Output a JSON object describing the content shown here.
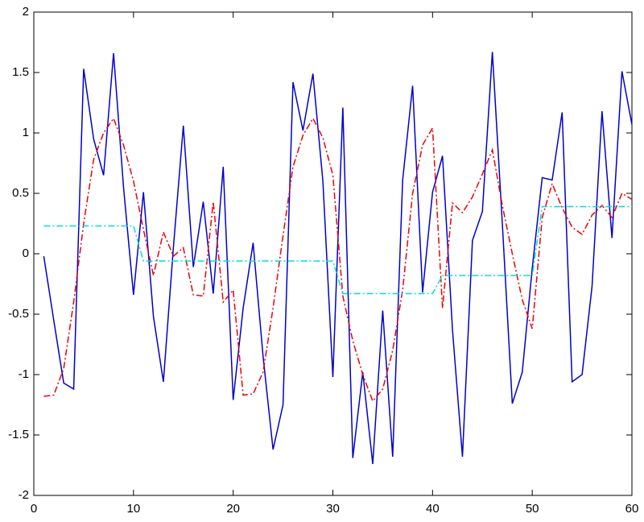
{
  "chart_data": {
    "type": "line",
    "x": [
      1,
      2,
      3,
      4,
      5,
      6,
      7,
      8,
      9,
      10,
      11,
      12,
      13,
      14,
      15,
      16,
      17,
      18,
      19,
      20,
      21,
      22,
      23,
      24,
      25,
      26,
      27,
      28,
      29,
      30,
      31,
      32,
      33,
      34,
      35,
      36,
      37,
      38,
      39,
      40,
      41,
      42,
      43,
      44,
      45,
      46,
      47,
      48,
      49,
      50,
      51,
      52,
      53,
      54,
      55,
      56,
      57,
      58,
      59,
      60
    ],
    "series": [
      {
        "color": "#0000cc",
        "style": "solid",
        "values": [
          -0.02,
          -0.55,
          -1.07,
          -1.12,
          1.53,
          0.95,
          0.65,
          1.66,
          0.55,
          -0.34,
          0.51,
          -0.52,
          -1.06,
          0.05,
          1.06,
          -0.11,
          0.43,
          -0.33,
          0.72,
          -1.21,
          -0.45,
          0.09,
          -0.85,
          -1.62,
          -1.25,
          1.42,
          1.02,
          1.49,
          0.6,
          -1.02,
          1.21,
          -1.69,
          -0.98,
          -1.74,
          -0.47,
          -1.68,
          0.61,
          1.39,
          -0.32,
          0.51,
          0.81,
          -0.63,
          -1.68,
          0.11,
          0.35,
          1.67,
          0.25,
          -1.24,
          -0.98,
          -0.12,
          0.63,
          0.61,
          1.17,
          -1.06,
          -1.0,
          -0.27,
          1.18,
          0.13,
          1.51,
          1.07
        ]
      },
      {
        "color": "#ee0000",
        "style": "dashdot",
        "values": [
          -1.18,
          -1.17,
          -0.95,
          -0.4,
          0.25,
          0.78,
          1.0,
          1.12,
          0.9,
          0.6,
          0.2,
          -0.18,
          0.18,
          -0.02,
          0.05,
          -0.34,
          -0.35,
          0.43,
          -0.4,
          -0.3,
          -1.17,
          -1.16,
          -0.98,
          -0.45,
          0.15,
          0.72,
          0.98,
          1.12,
          0.96,
          0.65,
          -0.35,
          -0.72,
          -1.0,
          -1.22,
          -1.12,
          -0.8,
          -0.3,
          0.5,
          0.9,
          1.04,
          -0.45,
          0.42,
          0.34,
          0.47,
          0.66,
          0.86,
          0.4,
          0.0,
          -0.38,
          -0.62,
          0.3,
          0.58,
          0.38,
          0.22,
          0.16,
          0.32,
          0.4,
          0.3,
          0.5,
          0.45
        ]
      },
      {
        "color": "#00dddd",
        "style": "dashdot",
        "values": [
          0.23,
          0.23,
          0.23,
          0.23,
          0.23,
          0.23,
          0.23,
          0.23,
          0.23,
          0.23,
          -0.06,
          -0.06,
          -0.06,
          -0.06,
          -0.06,
          -0.06,
          -0.06,
          -0.06,
          -0.06,
          -0.06,
          -0.06,
          -0.06,
          -0.06,
          -0.06,
          -0.06,
          -0.06,
          -0.06,
          -0.06,
          -0.06,
          -0.06,
          -0.33,
          -0.33,
          -0.33,
          -0.33,
          -0.33,
          -0.33,
          -0.33,
          -0.33,
          -0.33,
          -0.33,
          -0.18,
          -0.18,
          -0.18,
          -0.18,
          -0.18,
          -0.18,
          -0.18,
          -0.18,
          -0.18,
          -0.18,
          0.39,
          0.39,
          0.39,
          0.39,
          0.39,
          0.39,
          0.39,
          0.39,
          0.39,
          0.39
        ]
      }
    ],
    "xlim": [
      0,
      60
    ],
    "xticks": [
      0,
      10,
      20,
      30,
      40,
      50,
      60
    ],
    "ylim": [
      -2,
      2
    ],
    "yticks": [
      -2,
      -1.5,
      -1,
      -0.5,
      0,
      0.5,
      1,
      1.5,
      2
    ],
    "grid": false
  }
}
